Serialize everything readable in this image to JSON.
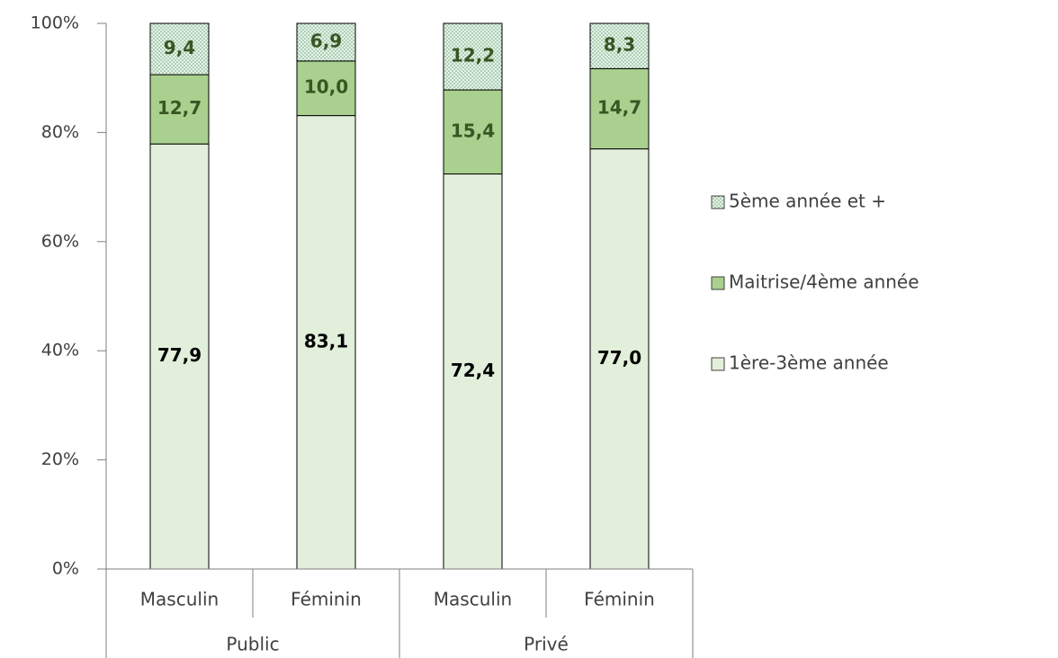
{
  "chart_data": {
    "type": "stacked_bar",
    "groups": [
      {
        "name": "Public",
        "categories": [
          "Masculin",
          "Féminin"
        ]
      },
      {
        "name": "Privé",
        "categories": [
          "Masculin",
          "Féminin"
        ]
      }
    ],
    "series": [
      {
        "name": "1ère-3ème année",
        "color": "#e2efda",
        "label_color": "#000000",
        "values": [
          77.9,
          83.1,
          72.4,
          77.0
        ],
        "value_labels": [
          "77,9",
          "83,1",
          "72,4",
          "77,0"
        ]
      },
      {
        "name": "Maitrise/4ème année",
        "color": "#a9d08e",
        "label_color": "#375623",
        "values": [
          12.7,
          10.0,
          15.4,
          14.7
        ],
        "value_labels": [
          "12,7",
          "10,0",
          "15,4",
          "14,7"
        ]
      },
      {
        "name": "5ème année et +",
        "color": "#dff0e3",
        "pattern": "dots",
        "label_color": "#375623",
        "values": [
          9.4,
          6.9,
          12.2,
          8.3
        ],
        "value_labels": [
          "9,4",
          "6,9",
          "12,2",
          "8,3"
        ]
      }
    ],
    "ylim": [
      0,
      100
    ],
    "yticks": [
      {
        "value": 0,
        "label": "0%"
      },
      {
        "value": 20,
        "label": "20%"
      },
      {
        "value": 40,
        "label": "40%"
      },
      {
        "value": 60,
        "label": "60%"
      },
      {
        "value": 80,
        "label": "80%"
      },
      {
        "value": 100,
        "label": "100%"
      }
    ],
    "legend": "right"
  }
}
